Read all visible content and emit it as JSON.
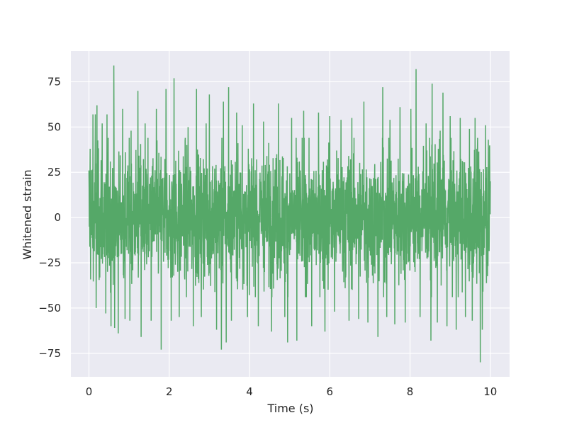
{
  "chart_data": {
    "type": "line",
    "title": "",
    "xlabel": "Time (s)",
    "ylabel": "Whitened strain",
    "xlim": [
      -0.45,
      10.48
    ],
    "ylim": [
      -88,
      92
    ],
    "x_ticks": [
      0,
      2,
      4,
      6,
      8,
      10
    ],
    "y_ticks": [
      -75,
      -50,
      -25,
      0,
      25,
      50,
      75
    ],
    "x_tick_labels": [
      "0",
      "2",
      "4",
      "6",
      "8",
      "10"
    ],
    "y_tick_labels": [
      "−75",
      "−50",
      "−25",
      "0",
      "25",
      "50",
      "75"
    ],
    "grid": true,
    "legend": "none",
    "style": "seaborn-darkgrid",
    "colors": {
      "series": "#55a868",
      "plot_background": "#eaeaf2",
      "grid": "#ffffff",
      "text": "#262626"
    },
    "series": [
      {
        "x_range": [
          0,
          10
        ],
        "typical_envelope": [
          -40,
          40
        ],
        "spikes": [
          {
            "x": 0.03,
            "y": 38
          },
          {
            "x": 0.1,
            "y": 57
          },
          {
            "x": 0.16,
            "y": 57
          },
          {
            "x": 0.18,
            "y": -50
          },
          {
            "x": 0.2,
            "y": 62
          },
          {
            "x": 0.33,
            "y": 52
          },
          {
            "x": 0.42,
            "y": -53
          },
          {
            "x": 0.45,
            "y": 57
          },
          {
            "x": 0.55,
            "y": -60
          },
          {
            "x": 0.62,
            "y": 84
          },
          {
            "x": 0.64,
            "y": -61
          },
          {
            "x": 0.73,
            "y": -64
          },
          {
            "x": 0.84,
            "y": 60
          },
          {
            "x": 0.9,
            "y": -56
          },
          {
            "x": 1.02,
            "y": -57
          },
          {
            "x": 1.05,
            "y": 48
          },
          {
            "x": 1.22,
            "y": 70
          },
          {
            "x": 1.3,
            "y": -66
          },
          {
            "x": 1.4,
            "y": 52
          },
          {
            "x": 1.55,
            "y": -57
          },
          {
            "x": 1.68,
            "y": 60
          },
          {
            "x": 1.8,
            "y": -73
          },
          {
            "x": 1.92,
            "y": 71
          },
          {
            "x": 2.05,
            "y": -57
          },
          {
            "x": 2.12,
            "y": 77
          },
          {
            "x": 2.25,
            "y": -55
          },
          {
            "x": 2.47,
            "y": 50
          },
          {
            "x": 2.6,
            "y": -60
          },
          {
            "x": 2.68,
            "y": 71
          },
          {
            "x": 2.8,
            "y": -55
          },
          {
            "x": 2.92,
            "y": 52
          },
          {
            "x": 3.0,
            "y": 68
          },
          {
            "x": 3.18,
            "y": -62
          },
          {
            "x": 3.3,
            "y": -73
          },
          {
            "x": 3.35,
            "y": 64
          },
          {
            "x": 3.42,
            "y": -69
          },
          {
            "x": 3.48,
            "y": 72
          },
          {
            "x": 3.55,
            "y": -57
          },
          {
            "x": 3.68,
            "y": 58
          },
          {
            "x": 3.82,
            "y": 51
          },
          {
            "x": 3.95,
            "y": -55
          },
          {
            "x": 4.1,
            "y": 63
          },
          {
            "x": 4.22,
            "y": -60
          },
          {
            "x": 4.35,
            "y": 53
          },
          {
            "x": 4.55,
            "y": -63
          },
          {
            "x": 4.72,
            "y": 63
          },
          {
            "x": 4.88,
            "y": -55
          },
          {
            "x": 4.95,
            "y": -69
          },
          {
            "x": 5.05,
            "y": 55
          },
          {
            "x": 5.18,
            "y": -68
          },
          {
            "x": 5.35,
            "y": 59
          },
          {
            "x": 5.55,
            "y": -60
          },
          {
            "x": 5.72,
            "y": 58
          },
          {
            "x": 5.88,
            "y": -63
          },
          {
            "x": 6.0,
            "y": 56
          },
          {
            "x": 6.12,
            "y": -52
          },
          {
            "x": 6.28,
            "y": 54
          },
          {
            "x": 6.48,
            "y": -57
          },
          {
            "x": 6.55,
            "y": 55
          },
          {
            "x": 6.72,
            "y": -56
          },
          {
            "x": 6.85,
            "y": 64
          },
          {
            "x": 6.95,
            "y": -58
          },
          {
            "x": 7.2,
            "y": -66
          },
          {
            "x": 7.32,
            "y": 72
          },
          {
            "x": 7.42,
            "y": -55
          },
          {
            "x": 7.5,
            "y": 54
          },
          {
            "x": 7.62,
            "y": -59
          },
          {
            "x": 7.75,
            "y": 61
          },
          {
            "x": 7.88,
            "y": -58
          },
          {
            "x": 8.02,
            "y": 60
          },
          {
            "x": 8.15,
            "y": 82
          },
          {
            "x": 8.25,
            "y": -55
          },
          {
            "x": 8.4,
            "y": 52
          },
          {
            "x": 8.52,
            "y": -68
          },
          {
            "x": 8.55,
            "y": 74
          },
          {
            "x": 8.68,
            "y": -58
          },
          {
            "x": 8.75,
            "y": 48
          },
          {
            "x": 8.82,
            "y": 69
          },
          {
            "x": 8.92,
            "y": -60
          },
          {
            "x": 9.0,
            "y": 56
          },
          {
            "x": 9.15,
            "y": -62
          },
          {
            "x": 9.25,
            "y": 55
          },
          {
            "x": 9.38,
            "y": -55
          },
          {
            "x": 9.48,
            "y": 49
          },
          {
            "x": 9.55,
            "y": -57
          },
          {
            "x": 9.62,
            "y": 55
          },
          {
            "x": 9.75,
            "y": -80
          },
          {
            "x": 9.8,
            "y": -62
          },
          {
            "x": 9.88,
            "y": 51
          },
          {
            "x": 9.95,
            "y": 43
          }
        ]
      }
    ]
  }
}
